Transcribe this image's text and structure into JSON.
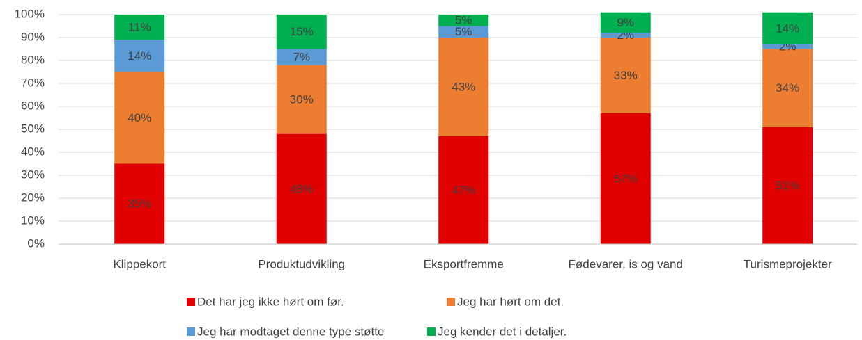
{
  "chart_data": {
    "type": "stacked_bar",
    "categories": [
      "Klippekort",
      "Produktudvikling",
      "Eksportfremme",
      "Fødevarer, is og vand",
      "Turismeprojekter"
    ],
    "series": [
      {
        "name": "Det har jeg ikke hørt om før.",
        "color": "#e00000",
        "values": [
          35,
          48,
          47,
          57,
          51
        ],
        "value_labels": [
          "35%",
          "48%",
          "47%",
          "57%",
          "51%"
        ]
      },
      {
        "name": "Jeg har hørt om det.",
        "color": "#ed7d31",
        "values": [
          40,
          30,
          43,
          33,
          34
        ],
        "value_labels": [
          "40%",
          "30%",
          "43%",
          "33%",
          "34%"
        ]
      },
      {
        "name": "Jeg har modtaget denne type støtte",
        "color": "#5b9bd5",
        "values": [
          14,
          7,
          5,
          2,
          2
        ],
        "value_labels": [
          "14%",
          "7%",
          "5%",
          "2%",
          "2%"
        ]
      },
      {
        "name": "Jeg kender det i detaljer.",
        "color": "#00b050",
        "values": [
          11,
          15,
          5,
          9,
          14
        ],
        "value_labels": [
          "11%",
          "15%",
          "5%",
          "9%",
          "14%"
        ]
      }
    ],
    "ylim": [
      0,
      100
    ],
    "yticks": [
      {
        "value": 0,
        "label": "0%"
      },
      {
        "value": 10,
        "label": "10%"
      },
      {
        "value": 20,
        "label": "20%"
      },
      {
        "value": 30,
        "label": "30%"
      },
      {
        "value": 40,
        "label": "40%"
      },
      {
        "value": 50,
        "label": "50%"
      },
      {
        "value": 60,
        "label": "60%"
      },
      {
        "value": 70,
        "label": "70%"
      },
      {
        "value": 80,
        "label": "80%"
      },
      {
        "value": 90,
        "label": "90%"
      },
      {
        "value": 100,
        "label": "100%"
      }
    ],
    "grid": true,
    "legend": "bottom"
  }
}
